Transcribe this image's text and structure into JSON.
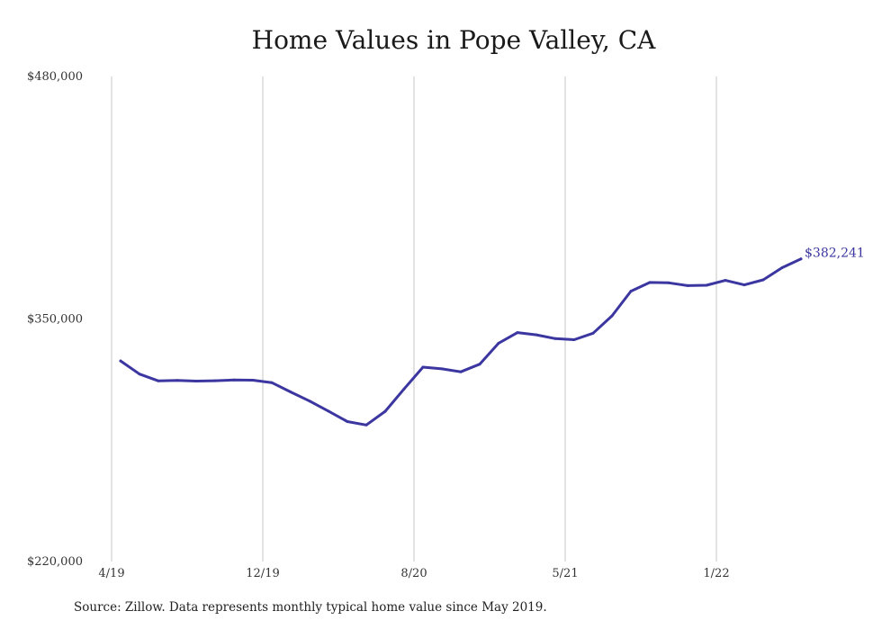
{
  "chart_data": {
    "type": "line",
    "title": "Home Values in Pope Valley, CA",
    "xlabel": "",
    "ylabel": "",
    "x_tick_labels": [
      "4/19",
      "12/19",
      "8/20",
      "5/21",
      "1/22"
    ],
    "y_tick_labels": [
      "$480,000",
      "$350,000",
      "$220,000"
    ],
    "ylim": [
      220000,
      480000
    ],
    "grid": "vertical",
    "end_label": "$382,241",
    "line_color": "#3b36a0",
    "series": [
      {
        "values": [
          327500,
          320500,
          316800,
          317100,
          316700,
          316900,
          317300,
          317200,
          315900,
          310900,
          306000,
          300600,
          295000,
          293200,
          300500,
          312500,
          324200,
          323300,
          321700,
          325800,
          337000,
          342700,
          341500,
          339500,
          338900,
          342400,
          351700,
          364900,
          369600,
          369400,
          367900,
          368100,
          370700,
          368300,
          371000,
          377500,
          382241
        ]
      }
    ]
  },
  "footer": {
    "source_note": "Source: Zillow. Data represents monthly typical home value since May 2019."
  }
}
